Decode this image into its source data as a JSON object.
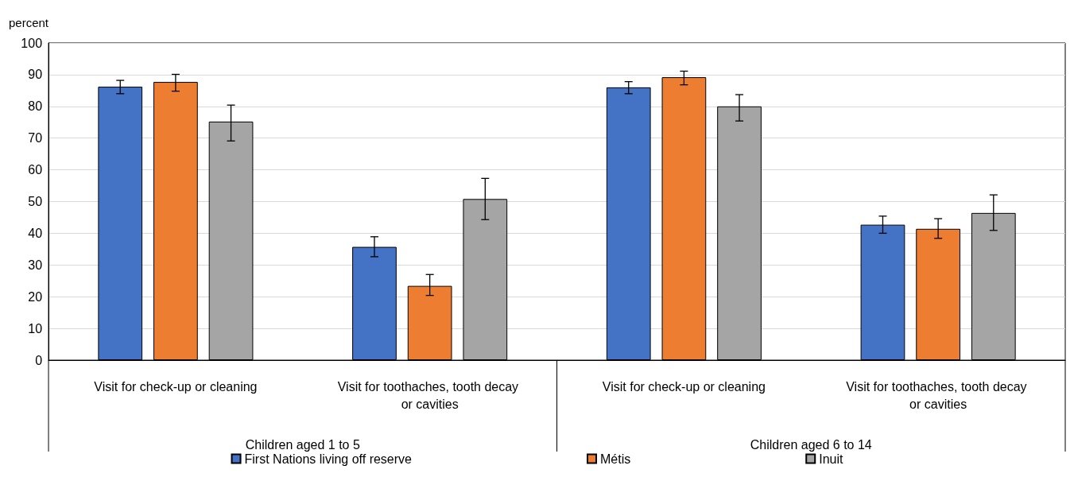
{
  "chart_data": {
    "type": "bar",
    "ylabel": "percent",
    "categories": [
      "Visit for check-up or cleaning",
      "Visit for toothaches, tooth decay or cavities",
      "Visit for check-up or cleaning",
      "Visit for toothaches, tooth decay or cavities"
    ],
    "series": [
      {
        "name": "First Nations living off reserve",
        "color": "#4472c4",
        "values": [
          86.2,
          35.7,
          86.0,
          42.7
        ],
        "errors": [
          [
            84.0,
            88.2
          ],
          [
            32.6,
            38.9
          ],
          [
            84.0,
            87.8
          ],
          [
            40.0,
            45.4
          ]
        ]
      },
      {
        "name": "Métis",
        "color": "#ed7d31",
        "values": [
          87.7,
          23.4,
          89.2,
          41.4
        ],
        "errors": [
          [
            84.8,
            90.1
          ],
          [
            20.4,
            27.0
          ],
          [
            86.8,
            91.1
          ],
          [
            38.4,
            44.6
          ]
        ]
      },
      {
        "name": "Inuit",
        "color": "#a5a5a5",
        "values": [
          75.2,
          50.8,
          80.0,
          46.4
        ],
        "errors": [
          [
            69.1,
            80.4
          ],
          [
            44.3,
            57.3
          ],
          [
            75.4,
            83.7
          ],
          [
            40.9,
            52.1
          ]
        ]
      }
    ],
    "ylim": [
      0,
      100
    ],
    "yticks": [
      0,
      10,
      20,
      30,
      40,
      50,
      60,
      70,
      80,
      90,
      100
    ],
    "annotations": [
      "Children aged 1 to 5",
      "Children aged 6 to 14"
    ],
    "grid": "y",
    "legend": "bottom"
  }
}
